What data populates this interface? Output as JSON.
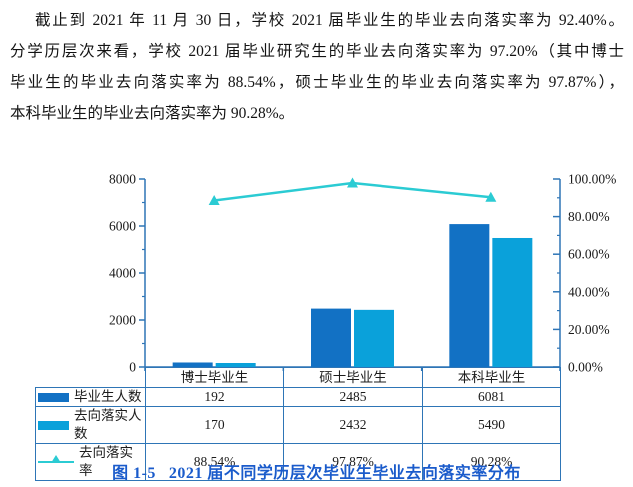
{
  "paragraph": {
    "lines": [
      "截止到 2021 年 11 月 30 日，学校 2021 届毕业生的毕业去向落实率为 92.40%。",
      "分学历层次来看，学校 2021 届毕业研究生的毕业去向落实率为 97.20%（其中博士",
      "毕业生的毕业去向落实率为 88.54%，硕士毕业生的毕业去向落实率为 97.87%），",
      "本科毕业生的毕业去向落实率为 90.28%。"
    ]
  },
  "chart_data": {
    "type": "bar+line",
    "title": "",
    "categories": [
      "博士毕业生",
      "硕士毕业生",
      "本科毕业生"
    ],
    "series": [
      {
        "name": "毕业生人数",
        "type": "bar",
        "color": "#1271C4",
        "values": [
          192,
          2485,
          6081
        ]
      },
      {
        "name": "去向落实人数",
        "type": "bar",
        "color": "#0AA1DA",
        "values": [
          170,
          2432,
          5490
        ]
      },
      {
        "name": "去向落实率",
        "type": "line",
        "color": "#2BCBD3",
        "values_pct": [
          88.54,
          97.87,
          90.28
        ],
        "labels": [
          "88.54%",
          "97.87%",
          "90.28%"
        ]
      }
    ],
    "left_axis": {
      "max": 8000,
      "ticks": [
        0,
        2000,
        4000,
        6000,
        8000
      ],
      "minor_step": 1000
    },
    "right_axis": {
      "tick_labels": [
        "0.00%",
        "20.00%",
        "40.00%",
        "60.00%",
        "80.00%",
        "100.00%"
      ],
      "minor_fraction_step": 0.1
    },
    "axis_color": "#2E75B6",
    "grid": false,
    "legend_position": "table-left"
  },
  "caption": {
    "label": "图 1-5",
    "title": "2021 届不同学历层次毕业生毕业去向落实率分布"
  }
}
